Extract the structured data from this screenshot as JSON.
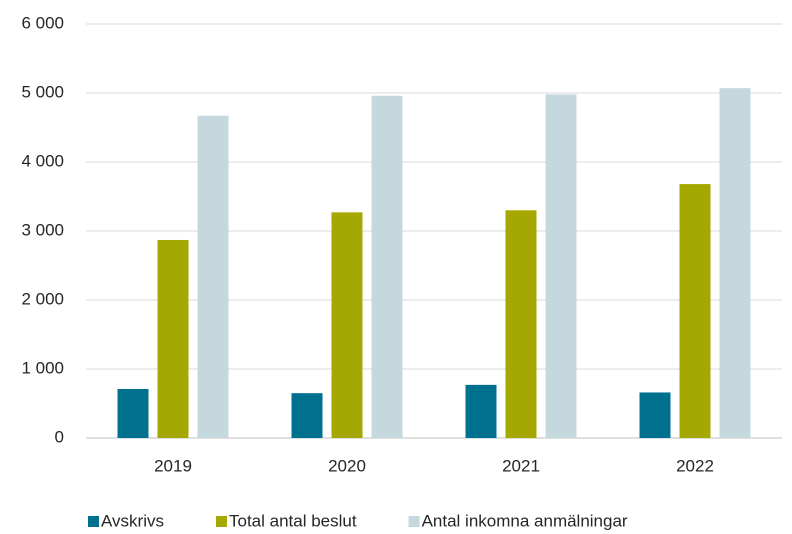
{
  "chart_data": {
    "type": "bar",
    "categories": [
      "2019",
      "2020",
      "2021",
      "2022"
    ],
    "series": [
      {
        "name": "Avskrivs",
        "color": "#00708f",
        "values": [
          710,
          650,
          770,
          660
        ]
      },
      {
        "name": "Total antal beslut",
        "color": "#a5a800",
        "values": [
          2870,
          3270,
          3300,
          3680
        ]
      },
      {
        "name": "Antal inkomna anmälningar",
        "color": "#c5d8dd",
        "values": [
          4670,
          4960,
          4980,
          5070
        ]
      }
    ],
    "ylim": [
      0,
      6000
    ],
    "yticks": [
      0,
      {
        "value": 1000,
        "label": "1 000"
      },
      {
        "value": 2000,
        "label": "2 000"
      },
      {
        "value": 3000,
        "label": "3 000"
      },
      {
        "value": 4000,
        "label": "4 000"
      },
      {
        "value": 5000,
        "label": "5 000"
      },
      {
        "value": 6000,
        "label": "6 000"
      }
    ],
    "grid": true,
    "legend": "bottom"
  }
}
